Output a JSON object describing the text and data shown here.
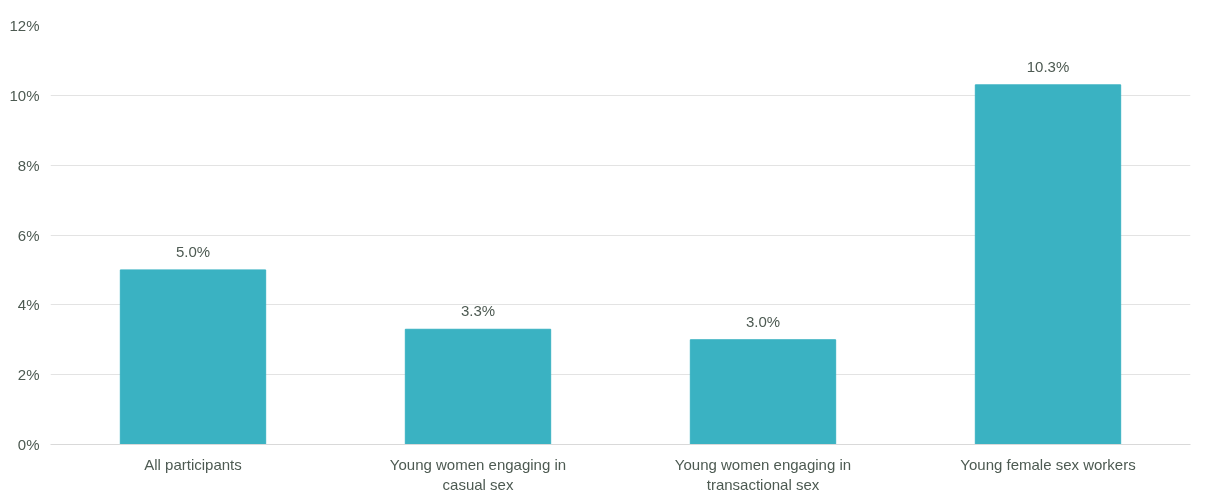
{
  "chart_data": {
    "type": "bar",
    "categories": [
      "All participants",
      "Young women engaging in casual sex",
      "Young women engaging in transactional sex",
      "Young female sex workers"
    ],
    "values": [
      5.0,
      3.3,
      3.0,
      10.3
    ],
    "color": "#3ab2c2",
    "value_labels": [
      "5.0%",
      "3.3%",
      "3.0%",
      "10.3%"
    ],
    "ylim": [
      0,
      12
    ],
    "yticks": [
      {
        "value": 0,
        "label": "0%"
      },
      {
        "value": 2,
        "label": "2%"
      },
      {
        "value": 4,
        "label": "4%"
      },
      {
        "value": 6,
        "label": "6%"
      },
      {
        "value": 8,
        "label": "8%"
      },
      {
        "value": 10,
        "label": "10%"
      },
      {
        "value": 12,
        "label": "12%"
      }
    ],
    "grid": "y"
  }
}
